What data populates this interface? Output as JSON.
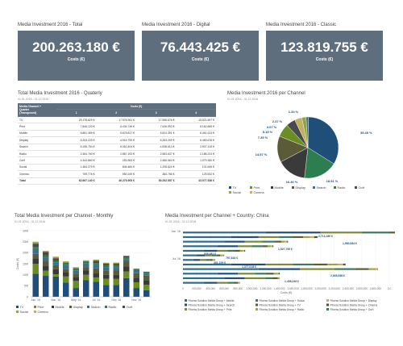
{
  "kpis": [
    {
      "title": "Media Investment 2016 - Total",
      "value": "200.263.180 €",
      "label": "Costs (€)"
    },
    {
      "title": "Media Investment 2016 - Digital",
      "value": "76.443.425 €",
      "label": "Costs (€)"
    },
    {
      "title": "Media Investment 2016 - Classic",
      "value": "123.819.755 €",
      "label": "Costs (€)"
    }
  ],
  "quarterly": {
    "title": "Total Media Investment 2016 - Quaterly",
    "subtitle": "01.01.2016 - 31.12.2016",
    "header_left": [
      "Media Channel +",
      "Quarter",
      "(Transposed)"
    ],
    "header_group": "Costs (€)",
    "quarters": [
      "1",
      "2",
      "3",
      "4"
    ],
    "rows": [
      {
        "name": "TV",
        "values": [
          "29.178.829 €",
          "17.976.961 €",
          "17.598.676 €",
          "15.521.897 €"
        ]
      },
      {
        "name": "Print",
        "values": [
          "7.846.120 €",
          "8.434.749 €",
          "7.526.993 €",
          "8.162.665 €"
        ]
      },
      {
        "name": "Mobile",
        "values": [
          "6.881.369 €",
          "5.678.817 €",
          "5.524.391 €",
          "6.461.613 €"
        ]
      },
      {
        "name": "Display",
        "values": [
          "6.203.229 €",
          "4.516.750 €",
          "6.253.259 €",
          "6.469.678 €"
        ]
      },
      {
        "name": "Search",
        "values": [
          "5.155.754 €",
          "5.052.404 €",
          "4.538.614 €",
          "2.907.215 €"
        ]
      },
      {
        "name": "Radio",
        "values": [
          "2.364.760 €",
          "2.867.193 €",
          "2.583.637 €",
          "2.188.224 €"
        ]
      },
      {
        "name": "OoH",
        "values": [
          "4.343.860 €",
          "253.963 €",
          "2.486.563 €",
          "1.079.350 €"
        ]
      },
      {
        "name": "Social",
        "values": [
          "1.484.279 €",
          "846.484 €",
          "1.208.624 €",
          "101.549 €"
        ]
      },
      {
        "name": "Cinema",
        "values": [
          "759.776 €",
          "550.249 €",
          "384.766 €",
          "125.532 €"
        ]
      }
    ],
    "total": {
      "name": "Total",
      "values": [
        "62.667.140 €",
        "46.279.905 €",
        "50.252.557 €",
        "43.077.536 €"
      ]
    }
  },
  "pie": {
    "title": "Media Investment 2016 per Channel",
    "subtitle": "01.01.2016 - 31.12.2016",
    "slice_labels": [
      "35.45 %",
      "18.91 %",
      "16.36 %",
      "14.57 %",
      "7.35 %",
      "5.18 %",
      "4.07 %",
      "2.37 %",
      "1.34 %"
    ],
    "legend": [
      "TV",
      "Print",
      "Mobile",
      "Display",
      "Search",
      "Radio",
      "OoH",
      "Social",
      "Cinema"
    ]
  },
  "monthly": {
    "title": "Total Media Investment per Channel - Monthly",
    "subtitle": "01.01.2016 - 31.12.2016",
    "ylabel": "Costs (€)",
    "yticks": [
      "30M",
      "25M",
      "20M",
      "15M",
      "10M",
      "5M",
      "0"
    ],
    "xticks": [
      "Jan '16",
      "Mar '16",
      "May '16",
      "Jul '16",
      "Sep '16",
      "Nov '16"
    ],
    "legend": [
      "TV",
      "Print",
      "Mobile",
      "Display",
      "Search",
      "Radio",
      "OoH",
      "Social",
      "Cinema"
    ]
  },
  "country": {
    "title": "Media Investment per Channel + Country: China",
    "subtitle": "01.01.2016 - 31.12.2016",
    "ylabels": [
      "Jan '16",
      "Jul '16"
    ],
    "xticks": [
      "0",
      "200,000",
      "400,000",
      "600,000",
      "800,000",
      "1,000,000",
      "1,200,000",
      "1,400,000",
      "1,600,000",
      "1,800,000",
      "2,000,000",
      "2,200,000",
      "2,400,000",
      "2,600,000",
      "2,800,000",
      "3,0"
    ],
    "xlabel": "Costs (€)",
    "data_labels": [
      "3,713,180 €",
      "1,960,584 €",
      "1,527,790 €",
      "938,481 €",
      "797,818 €",
      "451,229 €",
      "1,377,018 €",
      "2,835,558 €",
      "1,408,249 €"
    ],
    "legend": [
      "Fitness Solution Media Group + Mobile",
      "Fitness Solution Media Group + Search",
      "Fitness Solution Media Group + Print",
      "Fitness Solution Media Group + Social",
      "Fitness Solution Media Group + TV",
      "Fitness Solution Media Group + Radio",
      "Fitness Solution Media Group + Display",
      "Fitness Solution Media Group + Cinema",
      "Fitness Solution Media Group + OoH"
    ]
  },
  "colors": {
    "tv": "#1f4e79",
    "print": "#6b8e23",
    "mobile": "#3a3a3a",
    "display": "#5b5b3a",
    "search": "#3c6e8f",
    "radio": "#2e7d4f",
    "ooh": "#4a4a4a",
    "social": "#8fa63a",
    "cinema": "#c0b060",
    "kpi": "#5f6e7d"
  }
}
